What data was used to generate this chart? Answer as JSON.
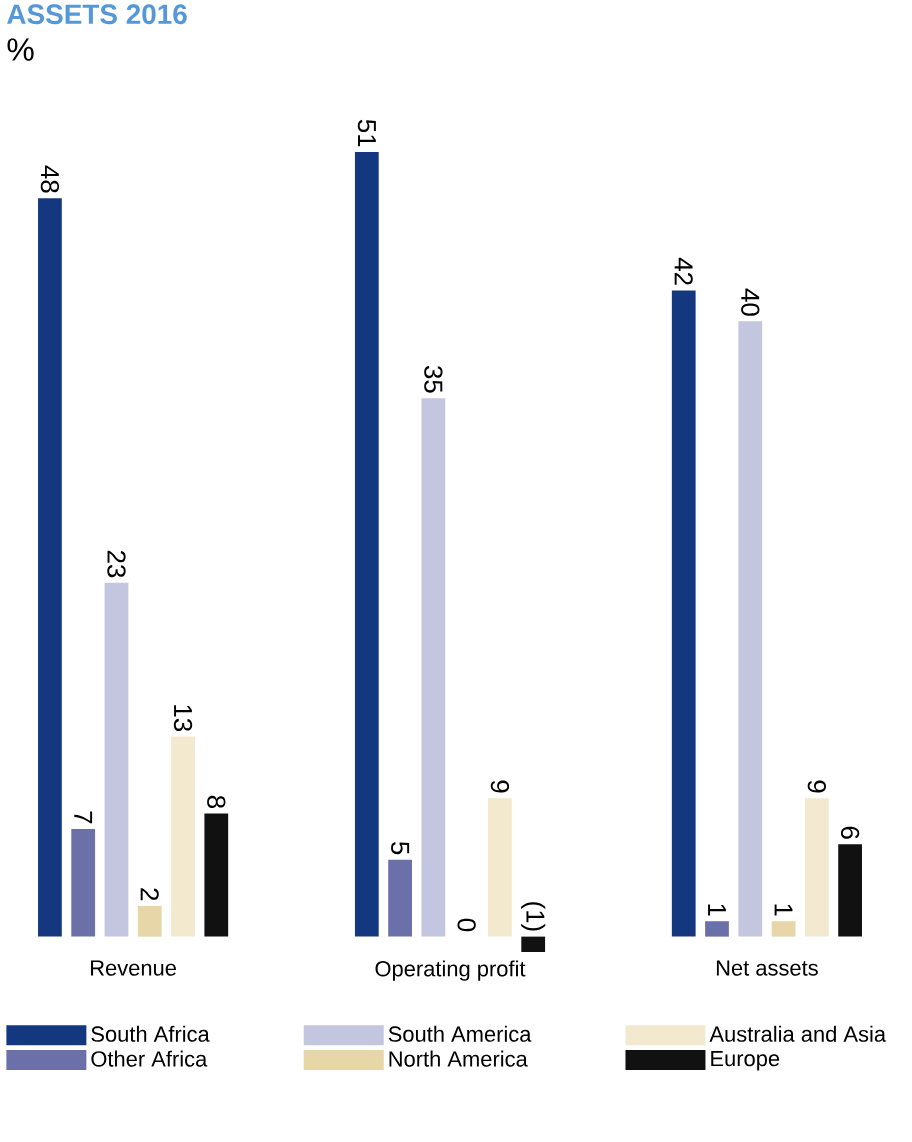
{
  "chart_data": {
    "type": "bar",
    "title": "ASSETS 2016",
    "ylabel": "%",
    "categories": [
      "Revenue",
      "Operating profit",
      "Net assets"
    ],
    "legend": "bottom",
    "series": [
      {
        "name": "South Africa",
        "color": "#14387f",
        "values": [
          48,
          51,
          42
        ],
        "value_labels": [
          "48",
          "51",
          "42"
        ]
      },
      {
        "name": "Other Africa",
        "color": "#6b70a8",
        "values": [
          7,
          5,
          1
        ],
        "value_labels": [
          "7",
          "5",
          "1"
        ]
      },
      {
        "name": "South America",
        "color": "#c4c6e0",
        "values": [
          23,
          35,
          40
        ],
        "value_labels": [
          "23",
          "35",
          "40"
        ]
      },
      {
        "name": "North America",
        "color": "#e6d6a8",
        "values": [
          2,
          0,
          1
        ],
        "value_labels": [
          "2",
          "0",
          "1"
        ]
      },
      {
        "name": "Australia and Asia",
        "color": "#f3e9cf",
        "values": [
          13,
          9,
          9
        ],
        "value_labels": [
          "13",
          "9",
          "9"
        ]
      },
      {
        "name": "Europe",
        "color": "#111111",
        "values": [
          8,
          -1,
          6
        ],
        "value_labels": [
          "8",
          "(1)",
          "6"
        ]
      }
    ]
  }
}
